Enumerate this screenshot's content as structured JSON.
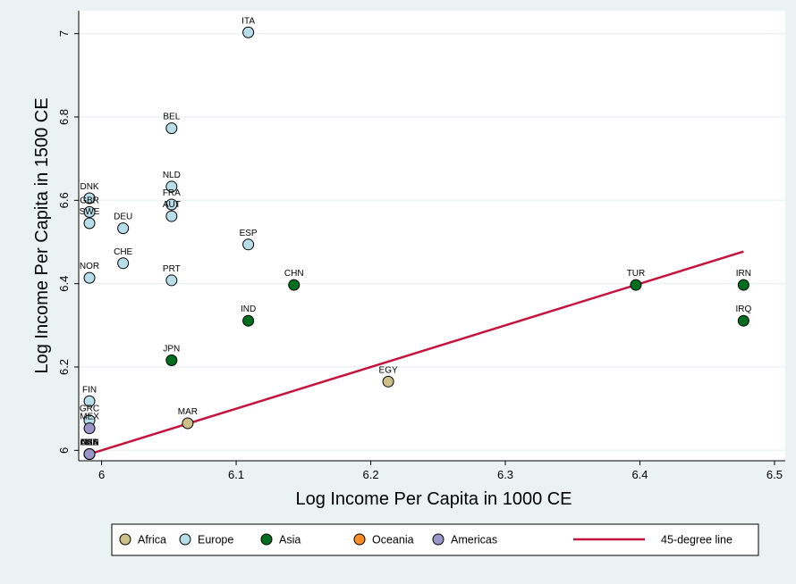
{
  "chart_data": {
    "type": "scatter",
    "title": "",
    "xlabel": "Log Income Per Capita in 1000 CE",
    "ylabel": "Log Income Per Capita in 1500 CE",
    "xlim": [
      5.983,
      6.508
    ],
    "ylim": [
      5.975,
      7.055
    ],
    "x_ticks": [
      6,
      6.1,
      6.2,
      6.3,
      6.4,
      6.5
    ],
    "x_tick_labels": [
      "6",
      "6.1",
      "6.2",
      "6.3",
      "6.4",
      "6.5"
    ],
    "y_ticks": [
      6,
      6.2,
      6.4,
      6.6,
      6.8,
      7
    ],
    "y_tick_labels": [
      "6",
      "6.2",
      "6.4",
      "6.6",
      "6.8",
      "7"
    ],
    "grid": "horizontal",
    "legend_position": "bottom",
    "series": [
      {
        "name": "Africa",
        "color": "#cdc089",
        "points": [
          {
            "label": "EGY",
            "x": 6.213,
            "y": 6.165
          },
          {
            "label": "MAR",
            "x": 6.064,
            "y": 6.065
          }
        ]
      },
      {
        "name": "Europe",
        "color": "#b7dde8",
        "points": [
          {
            "label": "ITA",
            "x": 6.109,
            "y": 7.003
          },
          {
            "label": "BEL",
            "x": 6.052,
            "y": 6.773
          },
          {
            "label": "NLD",
            "x": 6.052,
            "y": 6.633
          },
          {
            "label": "FRA",
            "x": 6.052,
            "y": 6.59
          },
          {
            "label": "AUT",
            "x": 6.052,
            "y": 6.562
          },
          {
            "label": "DNK",
            "x": 5.991,
            "y": 6.605
          },
          {
            "label": "GBR",
            "x": 5.991,
            "y": 6.572
          },
          {
            "label": "SWE",
            "x": 5.991,
            "y": 6.545
          },
          {
            "label": "DEU",
            "x": 6.016,
            "y": 6.533
          },
          {
            "label": "ESP",
            "x": 6.109,
            "y": 6.494
          },
          {
            "label": "CHE",
            "x": 6.016,
            "y": 6.449
          },
          {
            "label": "NOR",
            "x": 5.991,
            "y": 6.414
          },
          {
            "label": "PRT",
            "x": 6.052,
            "y": 6.408
          },
          {
            "label": "FIN",
            "x": 5.991,
            "y": 6.118
          },
          {
            "label": "GRC",
            "x": 5.991,
            "y": 6.072
          }
        ]
      },
      {
        "name": "Asia",
        "color": "#006d1f",
        "points": [
          {
            "label": "CHN",
            "x": 6.143,
            "y": 6.397
          },
          {
            "label": "TUR",
            "x": 6.397,
            "y": 6.397
          },
          {
            "label": "IRN",
            "x": 6.477,
            "y": 6.397
          },
          {
            "label": "IND",
            "x": 6.109,
            "y": 6.311
          },
          {
            "label": "IRQ",
            "x": 6.477,
            "y": 6.311
          },
          {
            "label": "JPN",
            "x": 6.052,
            "y": 6.216
          }
        ]
      },
      {
        "name": "Oceania",
        "color": "#ff8c24",
        "points": [
          {
            "label": "AUS",
            "x": 5.991,
            "y": 5.991
          },
          {
            "label": "NZL",
            "x": 5.991,
            "y": 5.991
          }
        ]
      },
      {
        "name": "Americas",
        "color": "#9b95c9",
        "points": [
          {
            "label": "MEX",
            "x": 5.991,
            "y": 6.053
          },
          {
            "label": "USA",
            "x": 5.991,
            "y": 5.991
          },
          {
            "label": "CAN",
            "x": 5.991,
            "y": 5.991
          }
        ]
      }
    ],
    "reference_line": {
      "name": "45-degree line",
      "color": "#c4133c",
      "x": [
        5.991,
        6.477
      ],
      "y": [
        5.991,
        6.477
      ]
    },
    "legend": [
      {
        "name": "Africa",
        "kind": "marker",
        "color": "#cdc089"
      },
      {
        "name": "Europe",
        "kind": "marker",
        "color": "#b7dde8"
      },
      {
        "name": "Asia",
        "kind": "marker",
        "color": "#006d1f"
      },
      {
        "name": "Oceania",
        "kind": "marker",
        "color": "#ff8c24"
      },
      {
        "name": "Americas",
        "kind": "marker",
        "color": "#9b95c9"
      },
      {
        "name": "45-degree line",
        "kind": "line",
        "color": "#c4133c"
      }
    ]
  }
}
